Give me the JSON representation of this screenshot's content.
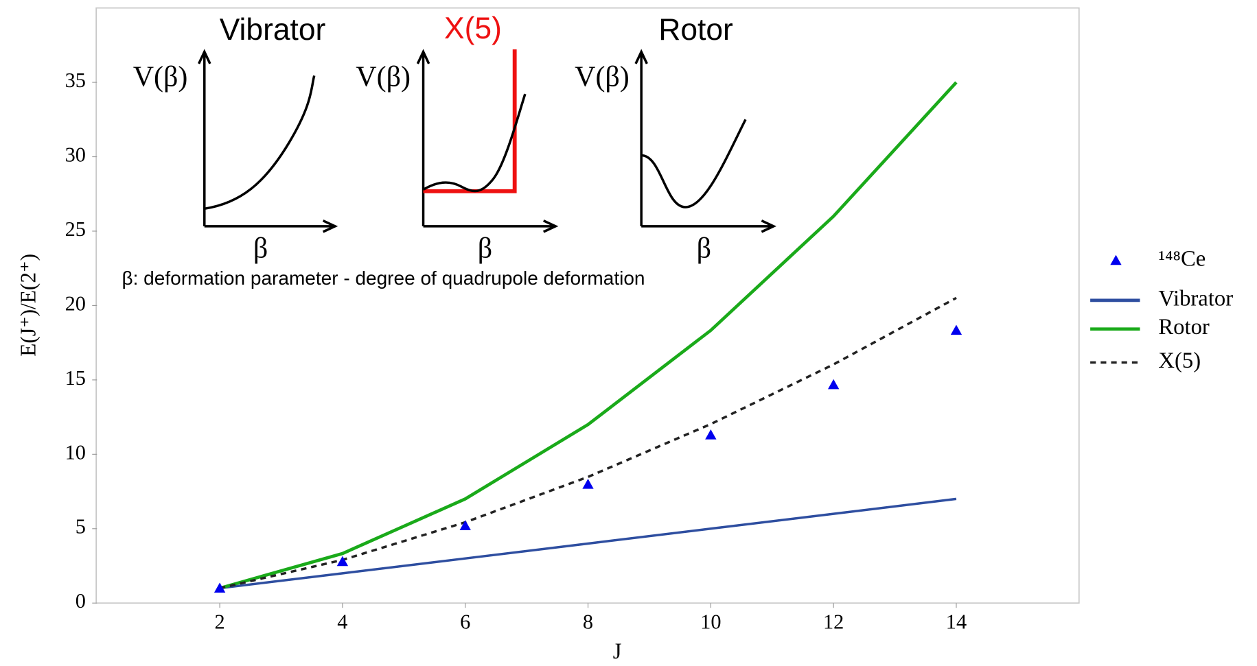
{
  "chart_data": {
    "type": "line",
    "x_label": "J",
    "y_label": "E(J⁺)/E(2⁺)",
    "x": [
      2,
      4,
      6,
      8,
      10,
      12,
      14
    ],
    "series": [
      {
        "name": "¹⁴⁸Ce",
        "color": "#0000ee",
        "marker": "triangle",
        "values": [
          1,
          2.79,
          5.2,
          7.98,
          11.3,
          14.68,
          18.33
        ]
      },
      {
        "name": "Vibrator",
        "color": "#2e4ea0",
        "values": [
          1,
          2,
          3,
          4,
          5,
          6,
          7
        ]
      },
      {
        "name": "Rotor",
        "color": "#1aaa1a",
        "values": [
          1,
          3.33,
          7,
          12,
          18.33,
          26,
          35
        ]
      },
      {
        "name": "X(5)",
        "color": "#222222",
        "dash": true,
        "values": [
          1,
          2.9,
          5.43,
          8.48,
          12.03,
          16.04,
          20.51
        ]
      }
    ],
    "xlim": [
      0,
      16
    ],
    "xticks": [
      2,
      4,
      6,
      8,
      10,
      12,
      14
    ],
    "ylim": [
      0,
      40
    ],
    "yticks": [
      0,
      5,
      10,
      15,
      20,
      25,
      30,
      35
    ],
    "legend": "right",
    "insets": [
      {
        "title": "Vibrator",
        "ylabel": "V(β)",
        "xlabel": "β"
      },
      {
        "title": "X(5)",
        "ylabel": "V(β)",
        "xlabel": "β"
      },
      {
        "title": "Rotor",
        "ylabel": "V(β)",
        "xlabel": "β"
      }
    ],
    "note": "β: deformation parameter - degree of quadrupole deformation"
  }
}
